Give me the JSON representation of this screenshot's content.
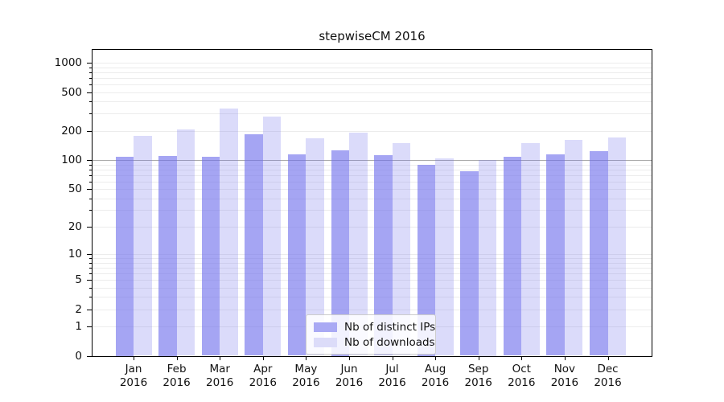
{
  "title": "stepwiseCM 2016",
  "legend": {
    "items": [
      {
        "label": "Nb of distinct IPs",
        "color": "#a9a9f4"
      },
      {
        "label": "Nb of downloads",
        "color": "#dcdcf9"
      }
    ]
  },
  "chart_data": {
    "type": "bar",
    "title": "stepwiseCM 2016",
    "categories": [
      "Jan 2016",
      "Feb 2016",
      "Mar 2016",
      "Apr 2016",
      "May 2016",
      "Jun 2016",
      "Jul 2016",
      "Aug 2016",
      "Sep 2016",
      "Oct 2016",
      "Nov 2016",
      "Dec 2016"
    ],
    "month_line1": [
      "Jan",
      "Feb",
      "Mar",
      "Apr",
      "May",
      "Jun",
      "Jul",
      "Aug",
      "Sep",
      "Oct",
      "Nov",
      "Dec"
    ],
    "month_line2": "2016",
    "series": [
      {
        "name": "Nb of distinct IPs",
        "values": [
          108,
          110,
          107,
          185,
          115,
          127,
          112,
          90,
          76,
          107,
          115,
          124
        ]
      },
      {
        "name": "Nb of downloads",
        "values": [
          178,
          205,
          340,
          280,
          167,
          190,
          150,
          103,
          100,
          150,
          160,
          172
        ]
      }
    ],
    "yscale": "log1p",
    "ylim": [
      0,
      1380
    ],
    "y_major_ticks": [
      0,
      1,
      2,
      5,
      10,
      20,
      50,
      100,
      200,
      500,
      1000
    ],
    "y_minor_ticks": [
      3,
      4,
      6,
      7,
      8,
      9,
      30,
      40,
      60,
      70,
      80,
      90,
      300,
      400,
      600,
      700,
      800,
      900
    ],
    "grid": "on",
    "legend_position": "lower-center",
    "colors": {
      "bar_dark_fill": "rgba(110,110,235,0.62)",
      "bar_light_fill": "rgba(110,110,235,0.25)",
      "grid_minor": "#ececec",
      "grid_major": "#ececec",
      "grid_hundred": "#aaaaaa",
      "axis": "#000000"
    }
  }
}
